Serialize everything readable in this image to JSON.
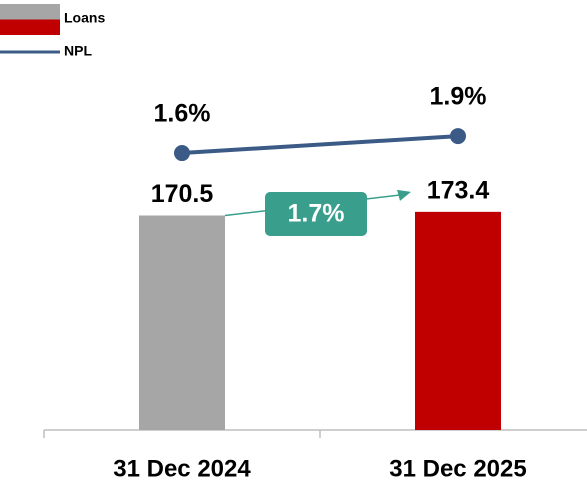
{
  "chart_data": {
    "type": "bar",
    "categories": [
      "31 Dec 2024",
      "31 Dec 2025"
    ],
    "series": [
      {
        "name": "Loans",
        "type": "bar",
        "colors": [
          "#a6a6a6",
          "#c00000"
        ],
        "values": [
          170.5,
          173.4
        ]
      },
      {
        "name": "NPL",
        "type": "line",
        "axis": "y2",
        "color": "#3b5b86",
        "values": [
          1.6,
          1.9
        ],
        "value_labels": [
          "1.6%",
          "1.9%"
        ]
      }
    ],
    "ylim": [
      0,
      310
    ],
    "y2lim": [
      -3.3,
      3.6
    ],
    "annotation": "1.7%",
    "annotation_color": "#3a9e8c"
  }
}
